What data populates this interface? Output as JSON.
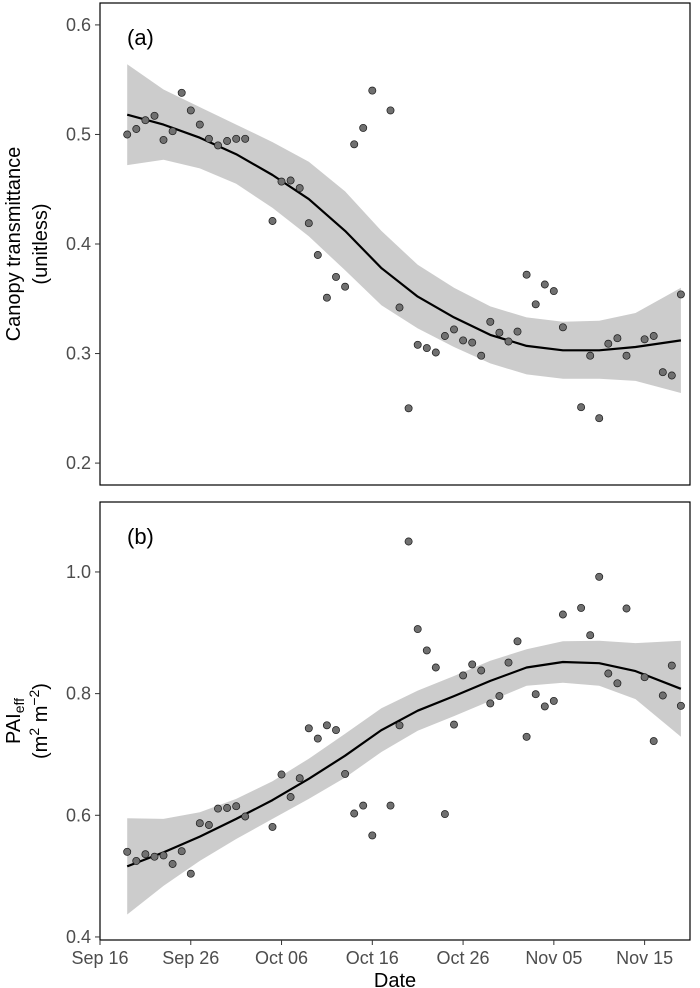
{
  "chart_data": [
    {
      "type": "scatter",
      "panel_label": "(a)",
      "ylabel_line1": "Canopy transmittance",
      "ylabel_line2": "(unitless)",
      "xlabel": "",
      "ylim": [
        0.18,
        0.62
      ],
      "yticks": [
        0.2,
        0.3,
        0.4,
        0.5,
        0.6
      ],
      "ytick_labels": [
        "0.2",
        "0.3",
        "0.4",
        "0.5",
        "0.6"
      ],
      "grid": false,
      "colors": {
        "point_fill": "#707070",
        "point_stroke": "#1a1a1a",
        "fit": "#000000",
        "ribbon": "#cccccc"
      },
      "points": [
        {
          "x": "2016-09-19",
          "y": 0.5
        },
        {
          "x": "2016-09-20",
          "y": 0.505
        },
        {
          "x": "2016-09-21",
          "y": 0.513
        },
        {
          "x": "2016-09-22",
          "y": 0.517
        },
        {
          "x": "2016-09-23",
          "y": 0.495
        },
        {
          "x": "2016-09-24",
          "y": 0.503
        },
        {
          "x": "2016-09-25",
          "y": 0.538
        },
        {
          "x": "2016-09-26",
          "y": 0.522
        },
        {
          "x": "2016-09-27",
          "y": 0.509
        },
        {
          "x": "2016-09-28",
          "y": 0.496
        },
        {
          "x": "2016-09-29",
          "y": 0.49
        },
        {
          "x": "2016-09-30",
          "y": 0.494
        },
        {
          "x": "2016-10-01",
          "y": 0.496
        },
        {
          "x": "2016-10-02",
          "y": 0.496
        },
        {
          "x": "2016-10-05",
          "y": 0.421
        },
        {
          "x": "2016-10-06",
          "y": 0.457
        },
        {
          "x": "2016-10-07",
          "y": 0.458
        },
        {
          "x": "2016-10-08",
          "y": 0.451
        },
        {
          "x": "2016-10-09",
          "y": 0.419
        },
        {
          "x": "2016-10-10",
          "y": 0.39
        },
        {
          "x": "2016-10-11",
          "y": 0.351
        },
        {
          "x": "2016-10-12",
          "y": 0.37
        },
        {
          "x": "2016-10-13",
          "y": 0.361
        },
        {
          "x": "2016-10-14",
          "y": 0.491
        },
        {
          "x": "2016-10-15",
          "y": 0.506
        },
        {
          "x": "2016-10-16",
          "y": 0.54
        },
        {
          "x": "2016-10-18",
          "y": 0.522
        },
        {
          "x": "2016-10-19",
          "y": 0.342
        },
        {
          "x": "2016-10-20",
          "y": 0.25
        },
        {
          "x": "2016-10-21",
          "y": 0.308
        },
        {
          "x": "2016-10-22",
          "y": 0.305
        },
        {
          "x": "2016-10-23",
          "y": 0.301
        },
        {
          "x": "2016-10-24",
          "y": 0.316
        },
        {
          "x": "2016-10-25",
          "y": 0.322
        },
        {
          "x": "2016-10-26",
          "y": 0.312
        },
        {
          "x": "2016-10-27",
          "y": 0.31
        },
        {
          "x": "2016-10-28",
          "y": 0.298
        },
        {
          "x": "2016-10-29",
          "y": 0.329
        },
        {
          "x": "2016-10-30",
          "y": 0.319
        },
        {
          "x": "2016-10-31",
          "y": 0.311
        },
        {
          "x": "2016-11-01",
          "y": 0.32
        },
        {
          "x": "2016-11-02",
          "y": 0.372
        },
        {
          "x": "2016-11-03",
          "y": 0.345
        },
        {
          "x": "2016-11-04",
          "y": 0.363
        },
        {
          "x": "2016-11-05",
          "y": 0.357
        },
        {
          "x": "2016-11-06",
          "y": 0.324
        },
        {
          "x": "2016-11-08",
          "y": 0.251
        },
        {
          "x": "2016-11-09",
          "y": 0.298
        },
        {
          "x": "2016-11-10",
          "y": 0.241
        },
        {
          "x": "2016-11-11",
          "y": 0.309
        },
        {
          "x": "2016-11-12",
          "y": 0.314
        },
        {
          "x": "2016-11-13",
          "y": 0.298
        },
        {
          "x": "2016-11-15",
          "y": 0.313
        },
        {
          "x": "2016-11-16",
          "y": 0.316
        },
        {
          "x": "2016-11-17",
          "y": 0.283
        },
        {
          "x": "2016-11-18",
          "y": 0.28
        },
        {
          "x": "2016-11-19",
          "y": 0.354
        }
      ],
      "fit": {
        "x": [
          "2016-09-19",
          "2016-09-23",
          "2016-09-27",
          "2016-10-01",
          "2016-10-05",
          "2016-10-09",
          "2016-10-13",
          "2016-10-17",
          "2016-10-21",
          "2016-10-25",
          "2016-10-29",
          "2016-11-02",
          "2016-11-06",
          "2016-11-10",
          "2016-11-14",
          "2016-11-19"
        ],
        "y": [
          0.518,
          0.509,
          0.497,
          0.482,
          0.463,
          0.441,
          0.412,
          0.378,
          0.352,
          0.333,
          0.317,
          0.307,
          0.303,
          0.303,
          0.306,
          0.312
        ],
        "ymin": [
          0.472,
          0.477,
          0.469,
          0.455,
          0.433,
          0.407,
          0.376,
          0.344,
          0.323,
          0.306,
          0.291,
          0.281,
          0.277,
          0.277,
          0.275,
          0.264
        ],
        "ymax": [
          0.564,
          0.541,
          0.525,
          0.509,
          0.493,
          0.475,
          0.448,
          0.412,
          0.381,
          0.36,
          0.343,
          0.333,
          0.329,
          0.33,
          0.337,
          0.36
        ]
      }
    },
    {
      "type": "scatter",
      "panel_label": "(b)",
      "ylabel_line1": "PAI",
      "ylabel_line1_sub": "eff",
      "ylabel_line2": "(m",
      "ylabel_line2_sup1": "2",
      "ylabel_line2_mid": " m",
      "ylabel_line2_sup2": "−2",
      "ylabel_line2_end": ")",
      "xlabel": "Date",
      "ylim": [
        0.395,
        1.115
      ],
      "yticks": [
        0.4,
        0.6,
        0.8,
        1.0
      ],
      "ytick_labels": [
        "0.4",
        "0.6",
        "0.8",
        "1.0"
      ],
      "xlim": [
        "2016-09-16",
        "2016-11-20"
      ],
      "xticks": [
        "2016-09-16",
        "2016-09-26",
        "2016-10-06",
        "2016-10-16",
        "2016-10-26",
        "2016-11-05",
        "2016-11-15"
      ],
      "xtick_labels": [
        "Sep 16",
        "Sep 26",
        "Oct 06",
        "Oct 16",
        "Oct 26",
        "Nov 05",
        "Nov 15"
      ],
      "grid": false,
      "colors": {
        "point_fill": "#707070",
        "point_stroke": "#1a1a1a",
        "fit": "#000000",
        "ribbon": "#cccccc"
      },
      "points": [
        {
          "x": "2016-09-19",
          "y": 0.54
        },
        {
          "x": "2016-09-20",
          "y": 0.525
        },
        {
          "x": "2016-09-21",
          "y": 0.536
        },
        {
          "x": "2016-09-22",
          "y": 0.532
        },
        {
          "x": "2016-09-23",
          "y": 0.534
        },
        {
          "x": "2016-09-24",
          "y": 0.52
        },
        {
          "x": "2016-09-25",
          "y": 0.541
        },
        {
          "x": "2016-09-26",
          "y": 0.504
        },
        {
          "x": "2016-09-27",
          "y": 0.587
        },
        {
          "x": "2016-09-28",
          "y": 0.584
        },
        {
          "x": "2016-09-29",
          "y": 0.611
        },
        {
          "x": "2016-09-30",
          "y": 0.612
        },
        {
          "x": "2016-10-01",
          "y": 0.615
        },
        {
          "x": "2016-10-02",
          "y": 0.598
        },
        {
          "x": "2016-10-05",
          "y": 0.581
        },
        {
          "x": "2016-10-06",
          "y": 0.667
        },
        {
          "x": "2016-10-07",
          "y": 0.63
        },
        {
          "x": "2016-10-08",
          "y": 0.661
        },
        {
          "x": "2016-10-09",
          "y": 0.743
        },
        {
          "x": "2016-10-10",
          "y": 0.726
        },
        {
          "x": "2016-10-11",
          "y": 0.748
        },
        {
          "x": "2016-10-12",
          "y": 0.74
        },
        {
          "x": "2016-10-13",
          "y": 0.668
        },
        {
          "x": "2016-10-14",
          "y": 0.603
        },
        {
          "x": "2016-10-15",
          "y": 0.616
        },
        {
          "x": "2016-10-16",
          "y": 0.567
        },
        {
          "x": "2016-10-18",
          "y": 0.616
        },
        {
          "x": "2016-10-19",
          "y": 0.748
        },
        {
          "x": "2016-10-20",
          "y": 1.05
        },
        {
          "x": "2016-10-21",
          "y": 0.906
        },
        {
          "x": "2016-10-22",
          "y": 0.871
        },
        {
          "x": "2016-10-23",
          "y": 0.843
        },
        {
          "x": "2016-10-24",
          "y": 0.602
        },
        {
          "x": "2016-10-25",
          "y": 0.749
        },
        {
          "x": "2016-10-26",
          "y": 0.83
        },
        {
          "x": "2016-10-27",
          "y": 0.848
        },
        {
          "x": "2016-10-28",
          "y": 0.838
        },
        {
          "x": "2016-10-29",
          "y": 0.784
        },
        {
          "x": "2016-10-30",
          "y": 0.796
        },
        {
          "x": "2016-10-31",
          "y": 0.851
        },
        {
          "x": "2016-11-01",
          "y": 0.886
        },
        {
          "x": "2016-11-02",
          "y": 0.729
        },
        {
          "x": "2016-11-03",
          "y": 0.799
        },
        {
          "x": "2016-11-04",
          "y": 0.779
        },
        {
          "x": "2016-11-05",
          "y": 0.788
        },
        {
          "x": "2016-11-06",
          "y": 0.93
        },
        {
          "x": "2016-11-08",
          "y": 0.941
        },
        {
          "x": "2016-11-09",
          "y": 0.896
        },
        {
          "x": "2016-11-10",
          "y": 0.992
        },
        {
          "x": "2016-11-11",
          "y": 0.833
        },
        {
          "x": "2016-11-12",
          "y": 0.817
        },
        {
          "x": "2016-11-13",
          "y": 0.94
        },
        {
          "x": "2016-11-15",
          "y": 0.827
        },
        {
          "x": "2016-11-16",
          "y": 0.722
        },
        {
          "x": "2016-11-17",
          "y": 0.797
        },
        {
          "x": "2016-11-18",
          "y": 0.846
        },
        {
          "x": "2016-11-19",
          "y": 0.78
        }
      ],
      "fit": {
        "x": [
          "2016-09-19",
          "2016-09-23",
          "2016-09-27",
          "2016-10-01",
          "2016-10-05",
          "2016-10-09",
          "2016-10-13",
          "2016-10-17",
          "2016-10-21",
          "2016-10-25",
          "2016-10-29",
          "2016-11-02",
          "2016-11-06",
          "2016-11-10",
          "2016-11-14",
          "2016-11-19"
        ],
        "y": [
          0.516,
          0.539,
          0.565,
          0.594,
          0.625,
          0.66,
          0.698,
          0.74,
          0.772,
          0.796,
          0.821,
          0.843,
          0.852,
          0.85,
          0.837,
          0.808
        ],
        "ymin": [
          0.437,
          0.484,
          0.525,
          0.561,
          0.594,
          0.627,
          0.662,
          0.704,
          0.739,
          0.763,
          0.788,
          0.813,
          0.818,
          0.813,
          0.791,
          0.729
        ],
        "ymax": [
          0.595,
          0.594,
          0.605,
          0.627,
          0.656,
          0.693,
          0.734,
          0.776,
          0.805,
          0.829,
          0.854,
          0.873,
          0.886,
          0.887,
          0.883,
          0.887
        ]
      }
    }
  ]
}
